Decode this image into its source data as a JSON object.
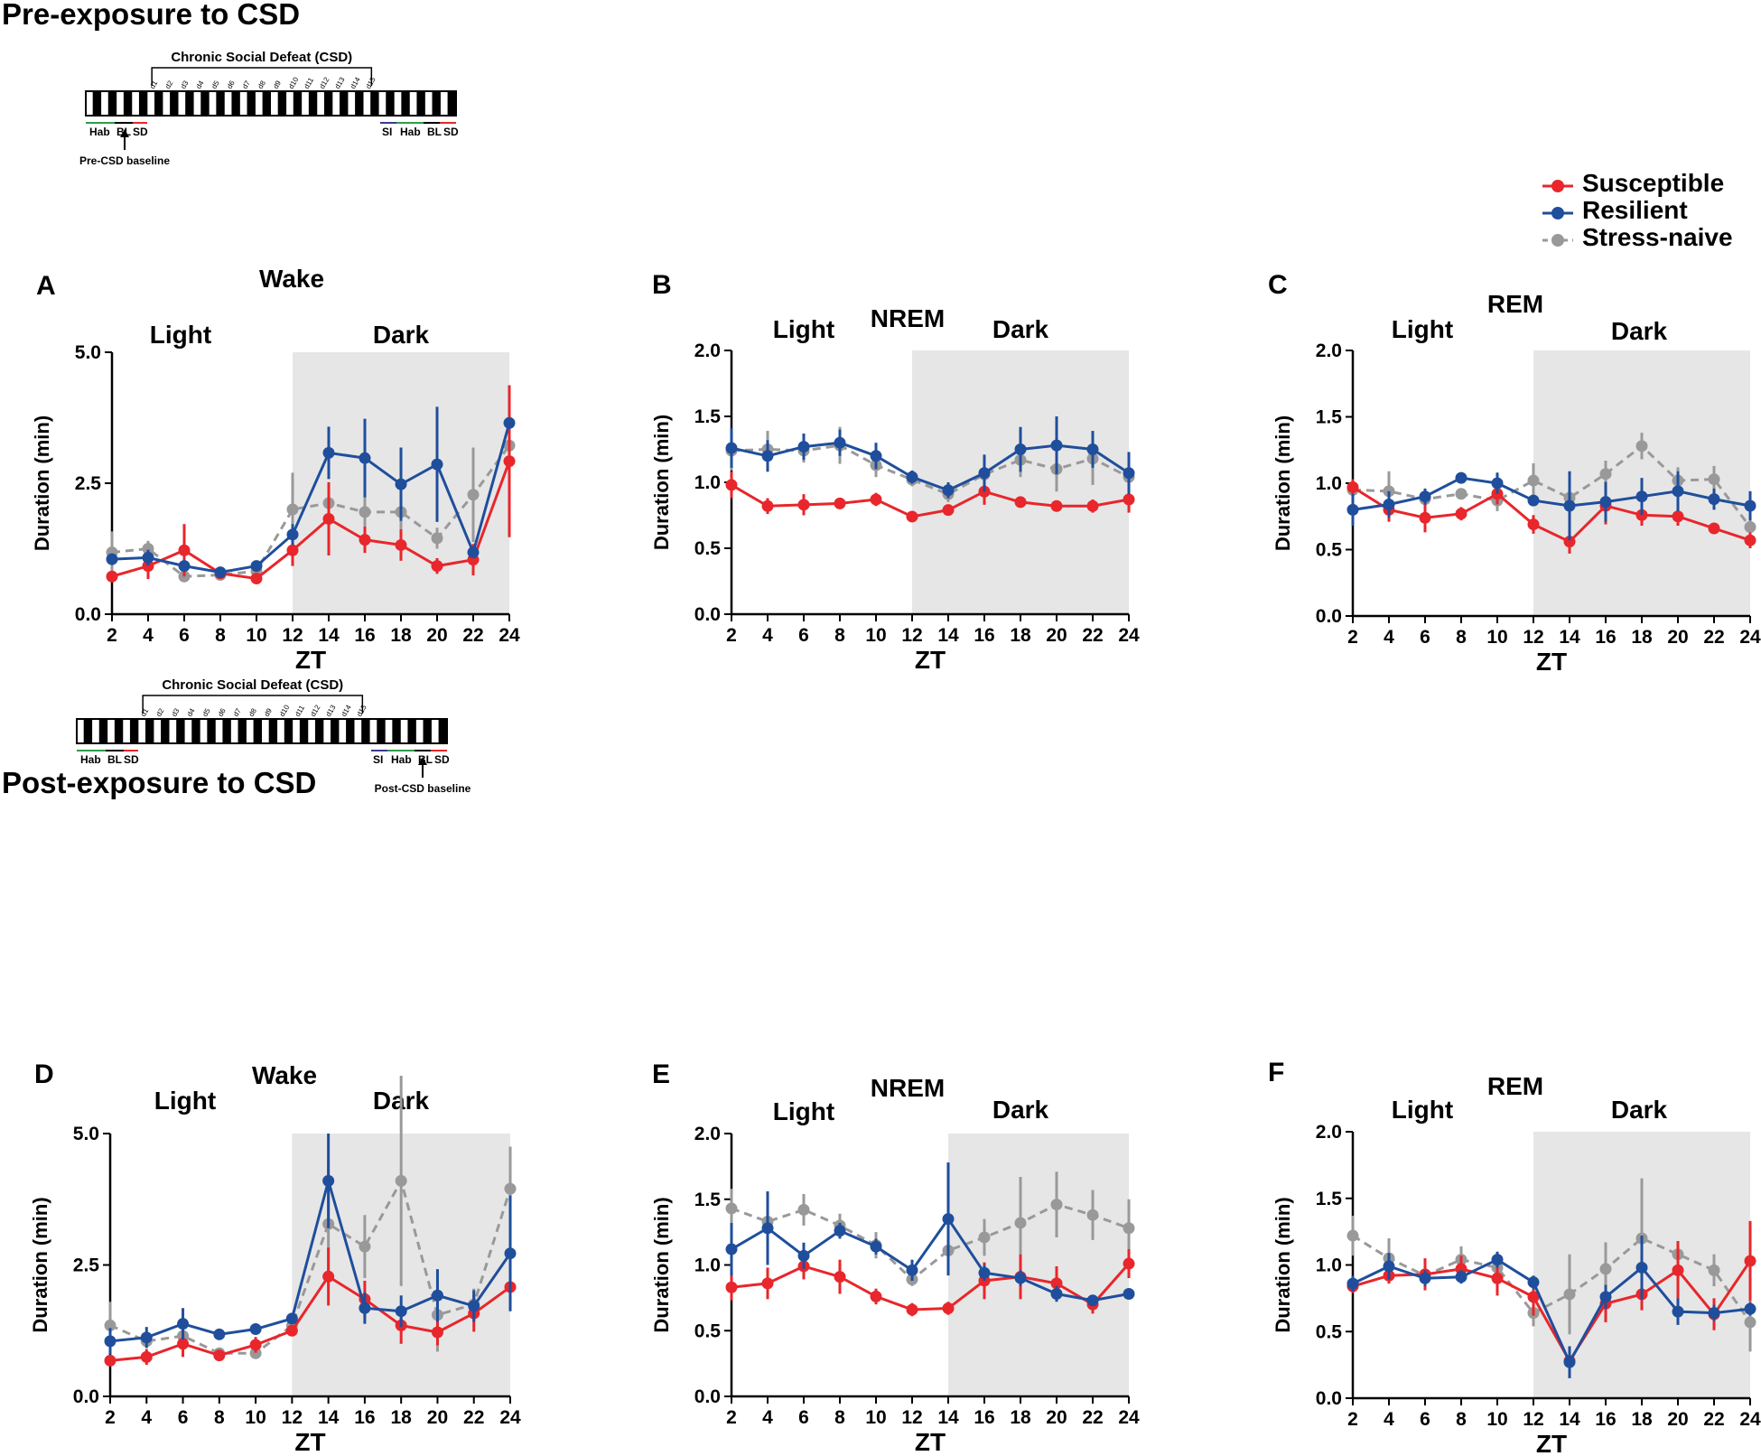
{
  "sections": [
    {
      "title": "Pre-exposure to CSD",
      "timeline": {
        "title": "Chronic Social Defeat (CSD)",
        "days": [
          "d1",
          "d2",
          "d3",
          "d4",
          "d5",
          "d6",
          "d7",
          "d8",
          "d9",
          "d10",
          "d11",
          "d12",
          "d13",
          "d14",
          "d15"
        ],
        "left_labels": [
          "Hab",
          "BL",
          "SD"
        ],
        "right_labels": [
          "SI",
          "Hab",
          "BL",
          "SD"
        ],
        "baseline_label": "Pre-CSD baseline",
        "baseline_side": "left"
      }
    },
    {
      "title": "Post-exposure to CSD",
      "timeline": {
        "title": "Chronic Social Defeat (CSD)",
        "days": [
          "d1",
          "d2",
          "d3",
          "d4",
          "d5",
          "d6",
          "d7",
          "d8",
          "d9",
          "d10",
          "d11",
          "d12",
          "d13",
          "d14",
          "d15"
        ],
        "left_labels": [
          "Hab",
          "BL",
          "SD"
        ],
        "right_labels": [
          "SI",
          "Hab",
          "BL",
          "SD"
        ],
        "baseline_label": "Post-CSD baseline",
        "baseline_side": "right"
      }
    }
  ],
  "legend": {
    "items": [
      {
        "label": "Susceptible",
        "color": "#e8262b",
        "style": "solid"
      },
      {
        "label": "Resilient",
        "color": "#1f4e9c",
        "style": "solid"
      },
      {
        "label": "Stress-naive",
        "color": "#999999",
        "style": "dashed"
      }
    ]
  },
  "chart_data": [
    {
      "panel": "A",
      "type": "line",
      "title": "Wake",
      "phase_labels": [
        "Light",
        "Dark"
      ],
      "dark_start": 12,
      "xlabel": "ZT",
      "ylabel": "Duration (min)",
      "ylim": [
        0,
        5
      ],
      "yticks": [
        "0.0",
        "2.5",
        "5.0"
      ],
      "x": [
        2,
        4,
        6,
        8,
        10,
        12,
        14,
        16,
        18,
        20,
        22,
        24
      ],
      "series": [
        {
          "name": "Susceptible",
          "values": [
            0.72,
            0.92,
            1.22,
            0.78,
            0.68,
            1.22,
            1.82,
            1.42,
            1.32,
            0.92,
            1.04,
            2.92
          ],
          "err": [
            0.1,
            0.25,
            0.5,
            0.1,
            0.1,
            0.3,
            0.7,
            0.25,
            0.3,
            0.15,
            0.3,
            1.45
          ]
        },
        {
          "name": "Resilient",
          "values": [
            1.05,
            1.08,
            0.92,
            0.8,
            0.92,
            1.52,
            3.08,
            2.98,
            2.48,
            2.86,
            1.18,
            3.65
          ],
          "err": [
            0.1,
            0.15,
            0.1,
            0.05,
            0.05,
            0.2,
            0.5,
            0.75,
            0.7,
            1.1,
            0.1,
            0.0
          ]
        },
        {
          "name": "Stress-naive",
          "values": [
            1.18,
            1.25,
            0.72,
            0.75,
            0.82,
            2.0,
            2.12,
            1.95,
            1.95,
            1.45,
            2.28,
            3.22
          ],
          "err": [
            0.4,
            0.15,
            0.1,
            0.05,
            0.1,
            0.7,
            0.2,
            0.5,
            0.7,
            0.2,
            0.9,
            0.0
          ]
        }
      ]
    },
    {
      "panel": "B",
      "type": "line",
      "title": "NREM",
      "phase_labels": [
        "Light",
        "Dark"
      ],
      "dark_start": 12,
      "xlabel": "ZT",
      "ylabel": "Duration (min)",
      "ylim": [
        0,
        2
      ],
      "yticks": [
        "0.0",
        "0.5",
        "1.0",
        "1.5",
        "2.0"
      ],
      "x": [
        2,
        4,
        6,
        8,
        10,
        12,
        14,
        16,
        18,
        20,
        22,
        24
      ],
      "series": [
        {
          "name": "Susceptible",
          "values": [
            0.98,
            0.82,
            0.83,
            0.84,
            0.87,
            0.74,
            0.79,
            0.93,
            0.85,
            0.82,
            0.82,
            0.87
          ],
          "err": [
            0.1,
            0.06,
            0.08,
            0.03,
            0.05,
            0.04,
            0.04,
            0.1,
            0.03,
            0.03,
            0.05,
            0.1
          ]
        },
        {
          "name": "Resilient",
          "values": [
            1.26,
            1.2,
            1.27,
            1.3,
            1.2,
            1.04,
            0.94,
            1.07,
            1.25,
            1.28,
            1.25,
            1.07
          ],
          "err": [
            0.15,
            0.12,
            0.1,
            0.1,
            0.1,
            0.05,
            0.06,
            0.14,
            0.17,
            0.22,
            0.14,
            0.16
          ]
        },
        {
          "name": "Stress-naive",
          "values": [
            1.24,
            1.25,
            1.24,
            1.28,
            1.13,
            1.02,
            0.91,
            1.06,
            1.17,
            1.1,
            1.18,
            1.04
          ],
          "err": [
            0.15,
            0.14,
            0.09,
            0.14,
            0.09,
            0.05,
            0.06,
            0.04,
            0.13,
            0.17,
            0.2,
            0.05
          ]
        }
      ]
    },
    {
      "panel": "C",
      "type": "line",
      "title": "REM",
      "phase_labels": [
        "Light",
        "Dark"
      ],
      "dark_start": 12,
      "xlabel": "ZT",
      "ylabel": "Duration (min)",
      "ylim": [
        0,
        2
      ],
      "yticks": [
        "0.0",
        "0.5",
        "1.0",
        "1.5",
        "2.0"
      ],
      "x": [
        2,
        4,
        6,
        8,
        10,
        12,
        14,
        16,
        18,
        20,
        22,
        24
      ],
      "series": [
        {
          "name": "Susceptible",
          "values": [
            0.97,
            0.8,
            0.74,
            0.77,
            0.92,
            0.69,
            0.56,
            0.83,
            0.76,
            0.75,
            0.66,
            0.57
          ],
          "err": [
            0.06,
            0.09,
            0.11,
            0.05,
            0.08,
            0.07,
            0.09,
            0.14,
            0.08,
            0.07,
            0.03,
            0.06
          ]
        },
        {
          "name": "Resilient",
          "values": [
            0.8,
            0.84,
            0.9,
            1.04,
            1.0,
            0.87,
            0.83,
            0.86,
            0.9,
            0.94,
            0.88,
            0.83
          ],
          "err": [
            0.12,
            0.1,
            0.06,
            0.03,
            0.08,
            0.03,
            0.26,
            0.15,
            0.14,
            0.15,
            0.08,
            0.11
          ]
        },
        {
          "name": "Stress-naive",
          "values": [
            0.95,
            0.94,
            0.88,
            0.92,
            0.87,
            1.02,
            0.89,
            1.07,
            1.28,
            1.02,
            1.03,
            0.67
          ],
          "err": [
            0.08,
            0.15,
            0.06,
            0.04,
            0.08,
            0.13,
            0.11,
            0.1,
            0.1,
            0.1,
            0.1,
            0.08
          ]
        }
      ]
    },
    {
      "panel": "D",
      "type": "line",
      "title": "Wake",
      "phase_labels": [
        "Light",
        "Dark"
      ],
      "dark_start": 12,
      "xlabel": "ZT",
      "ylabel": "Duration (min)",
      "ylim": [
        0,
        5
      ],
      "yticks": [
        "0.0",
        "2.5",
        "5.0"
      ],
      "x": [
        2,
        4,
        6,
        8,
        10,
        12,
        14,
        16,
        18,
        20,
        22,
        24
      ],
      "series": [
        {
          "name": "Susceptible",
          "values": [
            0.68,
            0.75,
            1.0,
            0.78,
            0.98,
            1.25,
            2.28,
            1.85,
            1.35,
            1.22,
            1.58,
            2.08
          ],
          "err": [
            0.1,
            0.15,
            0.25,
            0.1,
            0.15,
            0.1,
            0.55,
            0.35,
            0.35,
            0.25,
            0.35,
            0.35
          ]
        },
        {
          "name": "Resilient",
          "values": [
            1.05,
            1.12,
            1.38,
            1.18,
            1.28,
            1.48,
            4.1,
            1.68,
            1.62,
            1.92,
            1.72,
            2.72
          ],
          "err": [
            0.25,
            0.2,
            0.3,
            0.1,
            0.1,
            0.1,
            0.9,
            0.3,
            0.3,
            0.5,
            0.3,
            1.1
          ]
        },
        {
          "name": "Stress-naive",
          "values": [
            1.35,
            1.05,
            1.15,
            0.82,
            0.82,
            1.35,
            3.28,
            2.85,
            4.1,
            1.55,
            1.75,
            3.95
          ],
          "err": [
            0.45,
            0.1,
            0.25,
            0.1,
            0.1,
            0.2,
            1.2,
            0.6,
            2.0,
            0.7,
            0.3,
            0.8
          ]
        }
      ]
    },
    {
      "panel": "E",
      "type": "line",
      "title": "NREM",
      "phase_labels": [
        "Light",
        "Dark"
      ],
      "dark_start": 14,
      "xlabel": "ZT",
      "ylabel": "Duration (min)",
      "ylim": [
        0,
        2
      ],
      "yticks": [
        "0.0",
        "0.5",
        "1.0",
        "1.5",
        "2.0"
      ],
      "x": [
        2,
        4,
        6,
        8,
        10,
        12,
        14,
        16,
        18,
        20,
        22,
        24
      ],
      "series": [
        {
          "name": "Susceptible",
          "values": [
            0.83,
            0.86,
            0.99,
            0.91,
            0.76,
            0.66,
            0.67,
            0.88,
            0.91,
            0.86,
            0.7,
            1.01
          ],
          "err": [
            0.1,
            0.12,
            0.1,
            0.13,
            0.06,
            0.05,
            0.05,
            0.14,
            0.17,
            0.13,
            0.07,
            0.11
          ]
        },
        {
          "name": "Resilient",
          "values": [
            1.12,
            1.28,
            1.07,
            1.26,
            1.14,
            0.96,
            1.35,
            0.94,
            0.9,
            0.78,
            0.73,
            0.78
          ],
          "err": [
            0.2,
            0.28,
            0.1,
            0.06,
            0.06,
            0.08,
            0.43,
            0.06,
            0.06,
            0.06,
            0.04,
            0.0
          ]
        },
        {
          "name": "Stress-naive",
          "values": [
            1.43,
            1.33,
            1.42,
            1.3,
            1.15,
            0.89,
            1.11,
            1.21,
            1.32,
            1.46,
            1.38,
            1.28
          ],
          "err": [
            0.15,
            0.12,
            0.12,
            0.09,
            0.1,
            0.05,
            0.09,
            0.14,
            0.35,
            0.25,
            0.19,
            0.22
          ]
        }
      ]
    },
    {
      "panel": "F",
      "type": "line",
      "title": "REM",
      "phase_labels": [
        "Light",
        "Dark"
      ],
      "dark_start": 12,
      "xlabel": "ZT",
      "ylabel": "Duration (min)",
      "ylim": [
        0,
        2
      ],
      "yticks": [
        "0.0",
        "0.5",
        "1.0",
        "1.5",
        "2.0"
      ],
      "x": [
        2,
        4,
        6,
        8,
        10,
        12,
        14,
        16,
        18,
        20,
        22,
        24
      ],
      "series": [
        {
          "name": "Susceptible",
          "values": [
            0.84,
            0.92,
            0.93,
            0.97,
            0.9,
            0.76,
            0.28,
            0.71,
            0.78,
            0.96,
            0.63,
            1.03
          ],
          "err": [
            0.05,
            0.06,
            0.12,
            0.1,
            0.13,
            0.14,
            0.08,
            0.14,
            0.12,
            0.22,
            0.12,
            0.3
          ]
        },
        {
          "name": "Resilient",
          "values": [
            0.86,
            0.99,
            0.9,
            0.91,
            1.04,
            0.87,
            0.27,
            0.76,
            0.98,
            0.65,
            0.64,
            0.67
          ],
          "err": [
            0.06,
            0.1,
            0.06,
            0.05,
            0.06,
            0.05,
            0.12,
            0.09,
            0.24,
            0.1,
            0.06,
            0.05
          ]
        },
        {
          "name": "Stress-naive",
          "values": [
            1.22,
            1.05,
            0.92,
            1.04,
            0.98,
            0.64,
            0.78,
            0.97,
            1.2,
            1.08,
            0.96,
            0.57
          ],
          "err": [
            0.15,
            0.15,
            0.08,
            0.1,
            0.08,
            0.1,
            0.3,
            0.2,
            0.45,
            0.08,
            0.12,
            0.22
          ]
        }
      ]
    }
  ]
}
